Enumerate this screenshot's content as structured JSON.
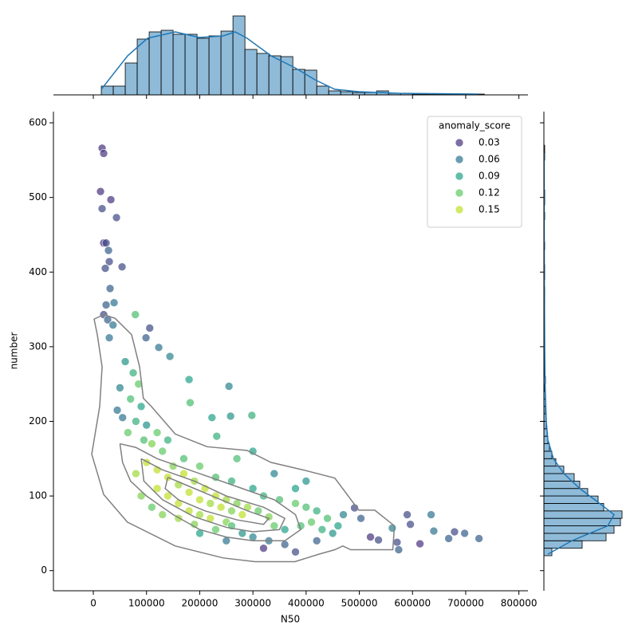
{
  "chart_data": {
    "type": "scatter",
    "x_label": "N50",
    "y_label": "number",
    "xlim": [
      -75000,
      817000
    ],
    "ylim": [
      -27,
      615
    ],
    "xticks": [
      0,
      100000,
      200000,
      300000,
      400000,
      500000,
      600000,
      700000,
      800000
    ],
    "yticks": [
      0,
      100,
      200,
      300,
      400,
      500,
      600
    ],
    "legend_title": "anomaly_score",
    "legend_position": "upper right",
    "legend_levels": [
      0.03,
      0.06,
      0.09,
      0.12,
      0.15
    ],
    "legend_colors": [
      "#46327e",
      "#2c728e",
      "#1fa187",
      "#5ec962",
      "#bddf26"
    ],
    "x": [
      16500,
      19500,
      13500,
      33000,
      16500,
      43500,
      19500,
      24000,
      28500,
      30000,
      22500,
      54000,
      31500,
      24000,
      39000,
      19500,
      27000,
      79000,
      106000,
      37000,
      30000,
      99000,
      123000,
      144000,
      180000,
      255000,
      182000,
      258000,
      298000,
      232000,
      223000,
      571000,
      574000,
      590000,
      596000,
      614000,
      635000,
      640000,
      679000,
      668000,
      698000,
      725000,
      503000,
      491000,
      562000,
      536000,
      521000,
      60000,
      75000,
      85000,
      50000,
      70000,
      90000,
      55000,
      80000,
      100000,
      65000,
      95000,
      110000,
      45000,
      120000,
      140000,
      100000,
      120000,
      140000,
      160000,
      180000,
      200000,
      220000,
      240000,
      260000,
      280000,
      150000,
      170000,
      190000,
      210000,
      230000,
      250000,
      270000,
      290000,
      310000,
      330000,
      120000,
      140000,
      160000,
      180000,
      200000,
      220000,
      250000,
      130000,
      170000,
      200000,
      230000,
      260000,
      300000,
      320000,
      350000,
      380000,
      400000,
      420000,
      340000,
      360000,
      390000,
      410000,
      430000,
      450000,
      300000,
      330000,
      360000,
      280000,
      380000,
      400000,
      340000,
      270000,
      300000,
      440000,
      460000,
      470000,
      160000,
      190000,
      230000,
      260000,
      80000,
      90000,
      110000,
      130000,
      250000,
      200000,
      320000,
      380000,
      420000
    ],
    "y": [
      566,
      559,
      508,
      497,
      485,
      473,
      439,
      439,
      429,
      414,
      405,
      407,
      378,
      356,
      359,
      343,
      336,
      343,
      325,
      329,
      312,
      312,
      299,
      287,
      256,
      247,
      225,
      207,
      208,
      180,
      205,
      38,
      28,
      75,
      62,
      36,
      75,
      53,
      52,
      43,
      50,
      43,
      70,
      84,
      57,
      41,
      45,
      280,
      265,
      250,
      245,
      230,
      220,
      205,
      200,
      195,
      185,
      175,
      170,
      215,
      185,
      175,
      145,
      135,
      125,
      115,
      105,
      95,
      90,
      85,
      80,
      75,
      140,
      130,
      120,
      110,
      100,
      95,
      90,
      85,
      80,
      72,
      110,
      100,
      90,
      80,
      75,
      70,
      65,
      160,
      150,
      140,
      125,
      120,
      110,
      100,
      95,
      90,
      85,
      80,
      60,
      55,
      60,
      65,
      55,
      50,
      45,
      40,
      35,
      50,
      110,
      120,
      130,
      150,
      160,
      70,
      60,
      75,
      70,
      62,
      55,
      60,
      130,
      100,
      85,
      75,
      40,
      50,
      30,
      25,
      40
    ],
    "anomaly_score": [
      0.03,
      0.03,
      0.03,
      0.03,
      0.04,
      0.04,
      0.03,
      0.04,
      0.05,
      0.04,
      0.04,
      0.04,
      0.05,
      0.05,
      0.06,
      0.04,
      0.05,
      0.11,
      0.04,
      0.06,
      0.06,
      0.05,
      0.06,
      0.07,
      0.09,
      0.07,
      0.11,
      0.08,
      0.1,
      0.1,
      0.09,
      0.04,
      0.05,
      0.04,
      0.04,
      0.03,
      0.06,
      0.06,
      0.04,
      0.05,
      0.05,
      0.05,
      0.05,
      0.04,
      0.07,
      0.04,
      0.03,
      0.08,
      0.1,
      0.12,
      0.07,
      0.11,
      0.09,
      0.06,
      0.1,
      0.08,
      0.12,
      0.11,
      0.13,
      0.06,
      0.12,
      0.1,
      0.15,
      0.16,
      0.15,
      0.14,
      0.16,
      0.15,
      0.14,
      0.16,
      0.13,
      0.15,
      0.13,
      0.15,
      0.14,
      0.16,
      0.15,
      0.14,
      0.13,
      0.14,
      0.12,
      0.13,
      0.16,
      0.15,
      0.16,
      0.15,
      0.14,
      0.15,
      0.13,
      0.12,
      0.11,
      0.12,
      0.11,
      0.1,
      0.09,
      0.1,
      0.11,
      0.12,
      0.11,
      0.1,
      0.12,
      0.09,
      0.11,
      0.12,
      0.1,
      0.08,
      0.07,
      0.06,
      0.05,
      0.08,
      0.09,
      0.08,
      0.07,
      0.11,
      0.09,
      0.11,
      0.09,
      0.07,
      0.14,
      0.13,
      0.12,
      0.11,
      0.14,
      0.13,
      0.12,
      0.13,
      0.06,
      0.09,
      0.03,
      0.04,
      0.05
    ],
    "contour_color": "#808080",
    "kde_contours": [
      {
        "x": [
          19500,
          41000,
          72000,
          87000,
          94000,
          109000,
          154000,
          214000,
          289000,
          334000,
          394000,
          454000,
          499000,
          529000,
          566000,
          563000,
          529000,
          484000,
          469000,
          454000,
          424000,
          379000,
          304000,
          244000,
          154000,
          64000,
          19500,
          -3000,
          12000,
          16500,
          7500,
          1500,
          19500
        ],
        "y": [
          343,
          338,
          316,
          273,
          231,
          220,
          183,
          166,
          161,
          145,
          135,
          124,
          81,
          81,
          60,
          28,
          28,
          28,
          33,
          28,
          22,
          12,
          12,
          17,
          33,
          65,
          102,
          156,
          220,
          273,
          316,
          337,
          343
        ]
      },
      {
        "x": [
          50000,
          80000,
          120000,
          160000,
          220000,
          280000,
          340000,
          380000,
          390000,
          360000,
          300000,
          250000,
          200000,
          150000,
          100000,
          70000,
          55000,
          50000
        ],
        "y": [
          170,
          165,
          150,
          140,
          125,
          110,
          95,
          75,
          55,
          40,
          40,
          45,
          55,
          75,
          100,
          120,
          145,
          170
        ]
      },
      {
        "x": [
          90000,
          130000,
          190000,
          250000,
          320000,
          360000,
          350000,
          300000,
          250000,
          190000,
          130000,
          95000,
          90000
        ],
        "y": [
          150,
          135,
          120,
          100,
          85,
          70,
          55,
          52,
          58,
          72,
          95,
          120,
          150
        ]
      },
      {
        "x": [
          140000,
          190000,
          240000,
          290000,
          330000,
          320000,
          270000,
          210000,
          160000,
          135000,
          140000
        ],
        "y": [
          125,
          110,
          95,
          80,
          70,
          62,
          68,
          80,
          95,
          110,
          125
        ]
      }
    ],
    "marginal_x": {
      "type": "histogram",
      "color": "#1f77b4",
      "ylim": [
        0,
        100
      ],
      "bins": [
        15000,
        37500,
        60000,
        82500,
        105000,
        127500,
        150000,
        172500,
        195000,
        217500,
        240000,
        262500,
        285000,
        307500,
        330000,
        352500,
        375000,
        397500,
        420000,
        442500,
        465000,
        487500,
        510000,
        532500,
        555000,
        577500,
        600000,
        622500,
        645000,
        667500,
        690000,
        712500,
        735000
      ],
      "counts": [
        11,
        11,
        40,
        70,
        79,
        81,
        76,
        76,
        71,
        74,
        80,
        99,
        57,
        52,
        49,
        48,
        32,
        31,
        11,
        5,
        4,
        3,
        3,
        5,
        2,
        2,
        1,
        1,
        1,
        1,
        0,
        1
      ],
      "kde": {
        "x": [
          15000,
          64400,
          101900,
          154300,
          199300,
          244200,
          266700,
          289100,
          334100,
          379000,
          416500,
          453900,
          498900,
          573800,
          723600
        ],
        "y": [
          7,
          49,
          71,
          79,
          72,
          74,
          79,
          71,
          49,
          34,
          19,
          7,
          4,
          2,
          1
        ]
      }
    },
    "marginal_y": {
      "type": "histogram",
      "color": "#1f77b4",
      "xlim": [
        0,
        100
      ],
      "bins": [
        20,
        30,
        40,
        50,
        60,
        70,
        80,
        90,
        100,
        110,
        120,
        130,
        140,
        150,
        160,
        170,
        180,
        190,
        200,
        210,
        220,
        230,
        240,
        250,
        260,
        270,
        280,
        290,
        300,
        310,
        320,
        330,
        340,
        350,
        360,
        370,
        380,
        390,
        400,
        410,
        420,
        430,
        440,
        450,
        460,
        470,
        480,
        490,
        500,
        510,
        520,
        530,
        540,
        550,
        560,
        570
      ],
      "counts": [
        10,
        48,
        78,
        88,
        96,
        98,
        75,
        68,
        55,
        45,
        38,
        25,
        15,
        10,
        7,
        5,
        4,
        3,
        3,
        2,
        2,
        2,
        1,
        2,
        1,
        1,
        1,
        1,
        1,
        1,
        1,
        1,
        1,
        1,
        1,
        1,
        0,
        1,
        1,
        0,
        0,
        1,
        0,
        0,
        0,
        1,
        0,
        1,
        1,
        0,
        0,
        0,
        0,
        1,
        1
      ],
      "kde": {
        "y": [
          22,
          40,
          60,
          75,
          90,
          110,
          130,
          150,
          175,
          200,
          250,
          300,
          400,
          560
        ],
        "x": [
          5,
          35,
          80,
          88,
          70,
          45,
          25,
          12,
          5,
          3,
          1.5,
          1,
          0.5,
          0.3
        ]
      }
    }
  }
}
